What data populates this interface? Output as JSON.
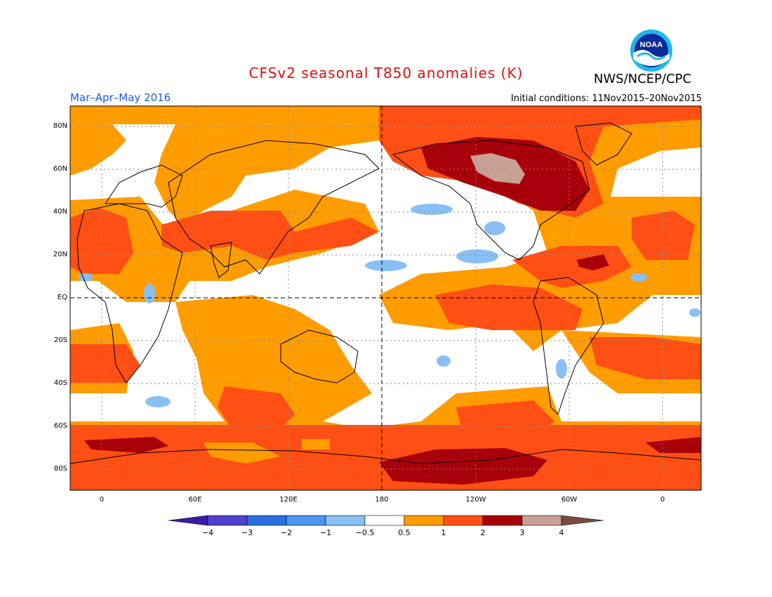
{
  "header": {
    "title": "CFSv2 seasonal T850 anomalies (K)",
    "agency": "NWS/NCEP/CPC",
    "season": "Mar–Apr–May 2016",
    "initial_conditions": "Initial conditions: 11Nov2015–20Nov2015",
    "logo_text": "NOAA"
  },
  "axes": {
    "lat_labels": [
      "80N",
      "60N",
      "40N",
      "20N",
      "EQ",
      "20S",
      "40S",
      "60S",
      "80S"
    ],
    "lon_labels": [
      "0",
      "60E",
      "120E",
      "180",
      "120W",
      "60W",
      "0"
    ]
  },
  "colorbar": {
    "labels": [
      "−4",
      "−3",
      "−2",
      "−1",
      "−0.5",
      "0.5",
      "1",
      "2",
      "3",
      "4"
    ],
    "colors": {
      "lt_neg4": "#3a1aa8",
      "neg4_neg3": "#5040d0",
      "neg3_neg2": "#2a6ee0",
      "neg2_neg1": "#4a96f0",
      "neg1_neg05": "#88c0f5",
      "neg05_05": "#ffffff",
      "05_1": "#ff9c00",
      "1_2": "#ff4f14",
      "2_3": "#a8000a",
      "3_4": "#c8a096",
      "gt_4": "#7a4a3a"
    }
  }
}
